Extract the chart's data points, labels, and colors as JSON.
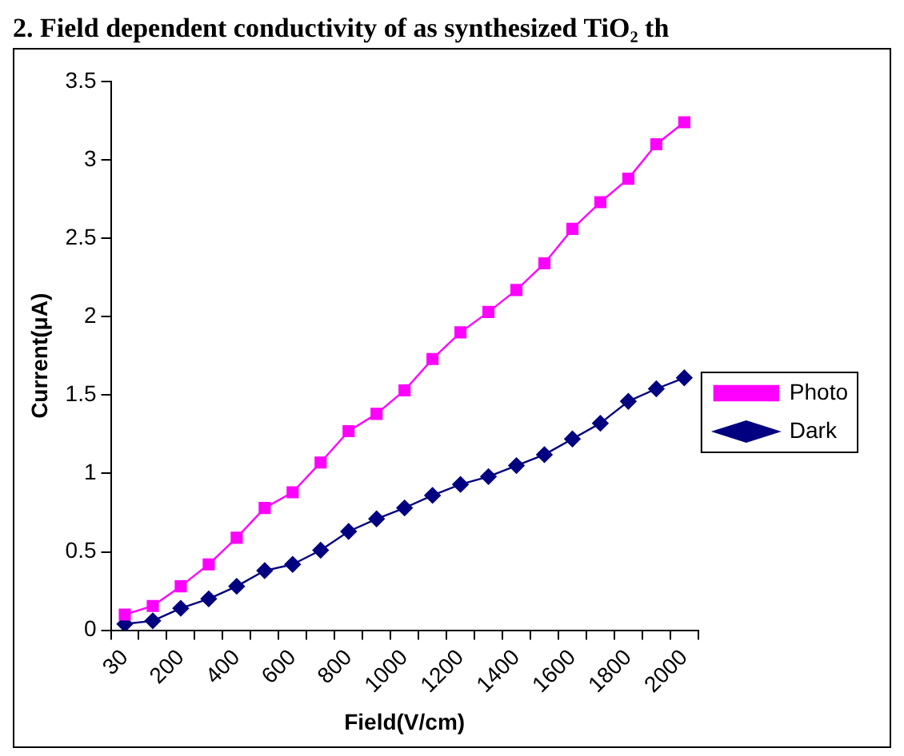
{
  "chart_data": {
    "type": "line",
    "title": "2. Field dependent conductivity of as synthesized TiO₂ th",
    "xlabel": "Field(V/cm)",
    "ylabel": "Current(μA)",
    "categories": [
      "30",
      null,
      "200",
      null,
      "400",
      null,
      "600",
      null,
      "800",
      null,
      "1000",
      null,
      "1200",
      null,
      "1400",
      null,
      "1600",
      null,
      "1800",
      null,
      "2000"
    ],
    "series": [
      {
        "name": "Photo",
        "color": "#ff00ff",
        "marker": "square",
        "values": [
          0.1,
          0.155,
          0.28,
          0.42,
          0.59,
          0.78,
          0.88,
          1.07,
          1.27,
          1.38,
          1.53,
          1.73,
          1.9,
          2.03,
          2.17,
          2.34,
          2.56,
          2.73,
          2.88,
          3.1,
          3.24
        ]
      },
      {
        "name": "Dark",
        "color": "#000080",
        "marker": "diamond",
        "values": [
          0.04,
          0.06,
          0.14,
          0.2,
          0.28,
          0.38,
          0.42,
          0.51,
          0.63,
          0.71,
          0.78,
          0.86,
          0.93,
          0.98,
          1.05,
          1.12,
          1.22,
          1.32,
          1.46,
          1.54,
          1.61
        ]
      }
    ],
    "ylim": [
      0,
      3.5
    ],
    "yticks": [
      0,
      0.5,
      1,
      1.5,
      2,
      2.5,
      3,
      3.5
    ],
    "grid": false,
    "legend": "right",
    "line_style": "solid"
  }
}
